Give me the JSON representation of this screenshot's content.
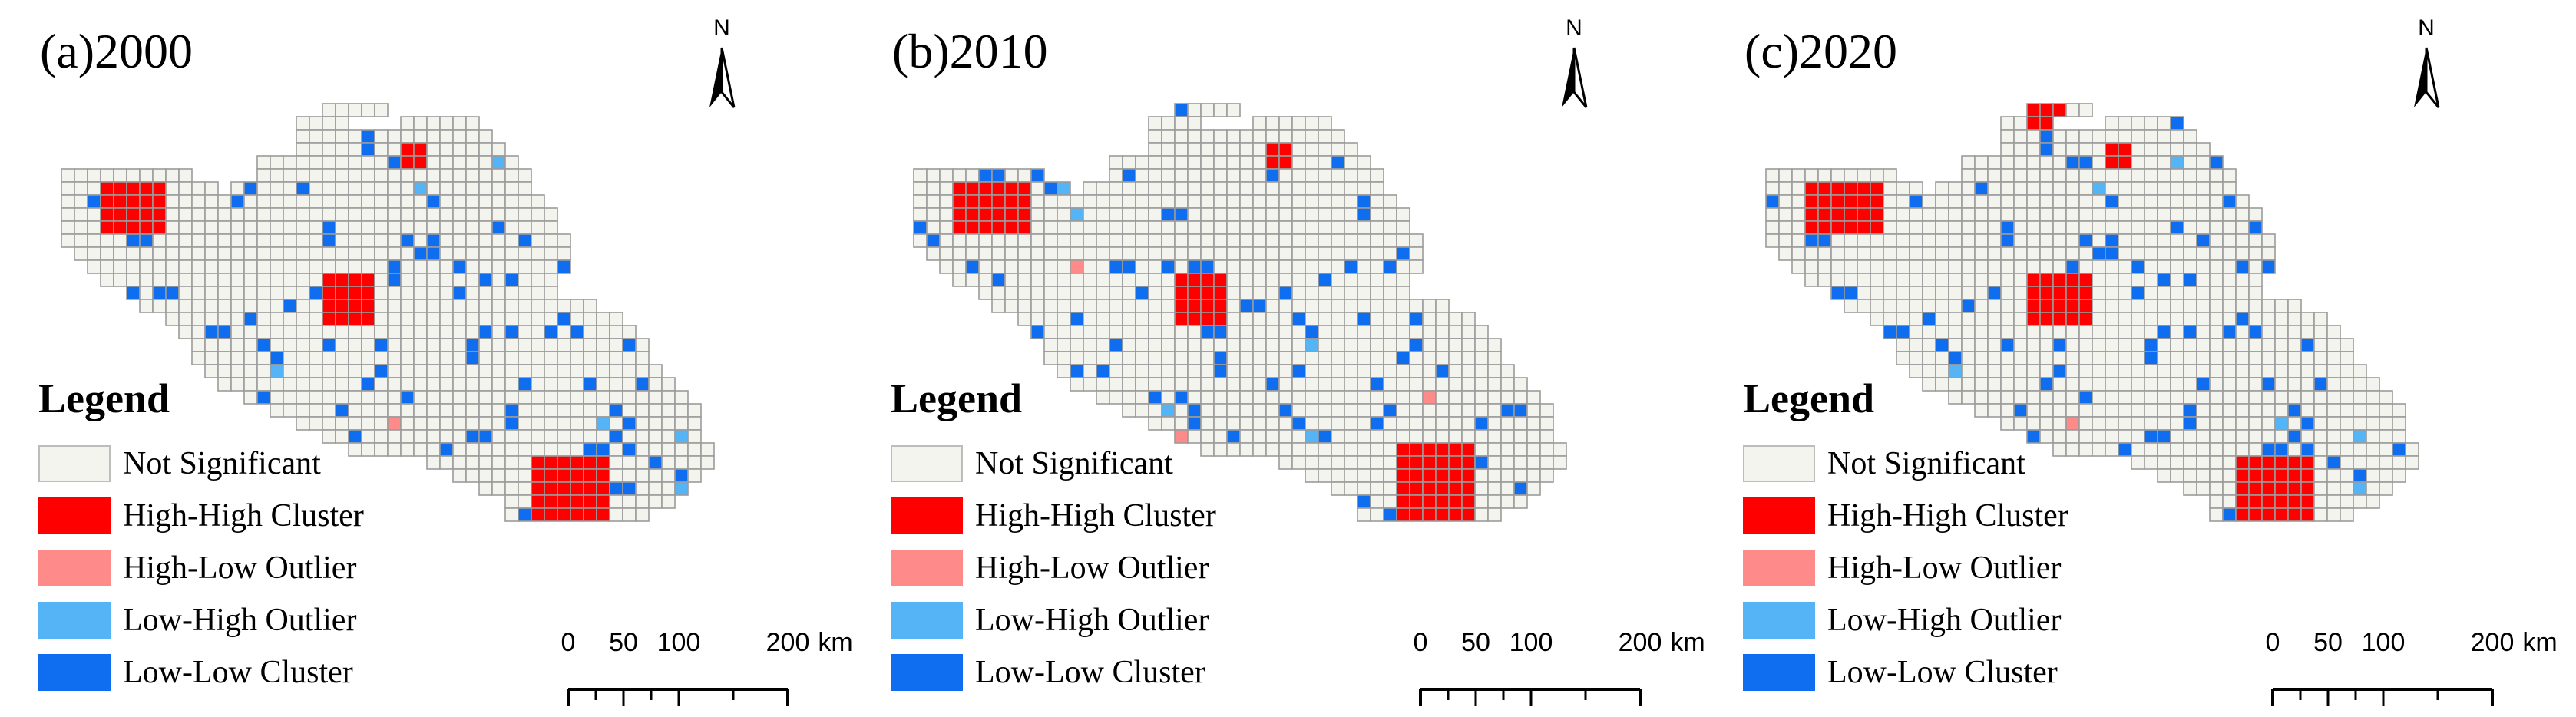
{
  "figure": {
    "panels": [
      {
        "title": "(a)2000",
        "north_label": "N",
        "legend": {
          "title": "Legend",
          "items": [
            {
              "label": "Not Significant",
              "color": "#f4f4ef"
            },
            {
              "label": "High-High Cluster",
              "color": "#ff0000"
            },
            {
              "label": "High-Low Outlier",
              "color": "#ff8a8a"
            },
            {
              "label": "Low-High Outlier",
              "color": "#55b4f5"
            },
            {
              "label": "Low-Low Cluster",
              "color": "#0f6df0"
            }
          ]
        },
        "scale": {
          "ticks": [
            "0",
            "50",
            "100",
            "200"
          ],
          "unit": "km"
        }
      },
      {
        "title": "(b)2010",
        "north_label": "N",
        "legend": {
          "title": "Legend",
          "items": [
            {
              "label": "Not Significant",
              "color": "#f4f4ef"
            },
            {
              "label": "High-High Cluster",
              "color": "#ff0000"
            },
            {
              "label": "High-Low Outlier",
              "color": "#ff8a8a"
            },
            {
              "label": "Low-High Outlier",
              "color": "#55b4f5"
            },
            {
              "label": "Low-Low Cluster",
              "color": "#0f6df0"
            }
          ]
        },
        "scale": {
          "ticks": [
            "0",
            "50",
            "100",
            "200"
          ],
          "unit": "km"
        }
      },
      {
        "title": "(c)2020",
        "north_label": "N",
        "legend": {
          "title": "Legend",
          "items": [
            {
              "label": "Not Significant",
              "color": "#f4f4ef"
            },
            {
              "label": "High-High Cluster",
              "color": "#ff0000"
            },
            {
              "label": "High-Low Outlier",
              "color": "#ff8a8a"
            },
            {
              "label": "Low-High Outlier",
              "color": "#55b4f5"
            },
            {
              "label": "Low-Low Cluster",
              "color": "#0f6df0"
            }
          ]
        },
        "scale": {
          "ticks": [
            "0",
            "50",
            "100",
            "200"
          ],
          "unit": "km"
        }
      }
    ]
  }
}
